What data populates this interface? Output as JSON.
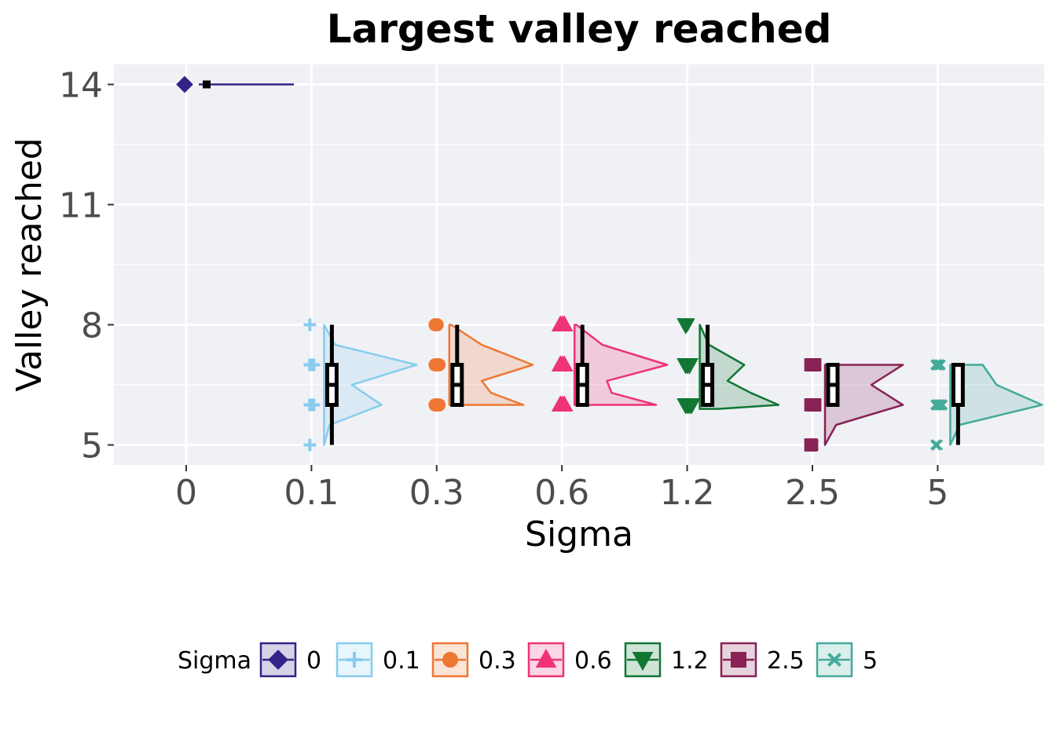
{
  "chart_data": {
    "type": "raincloud",
    "title": "Largest valley reached",
    "xlabel": "Sigma",
    "ylabel": "Valley reached",
    "categories": [
      "0",
      "0.1",
      "0.3",
      "0.6",
      "1.2",
      "2.5",
      "5"
    ],
    "y_ticks": [
      5,
      8,
      11,
      14
    ],
    "y_tick_labels": [
      "5",
      "8",
      "11",
      "14"
    ],
    "ylim": [
      4.5,
      14.5
    ],
    "grid": true,
    "legend_position": "bottom",
    "legend_title": "Sigma",
    "colors": [
      "#332288",
      "#88CCEE",
      "#EE7733",
      "#EE3377",
      "#117733",
      "#882255",
      "#44AA99"
    ],
    "markers": [
      "diamond",
      "plus",
      "circle",
      "triangle-up",
      "triangle-down",
      "square",
      "x"
    ],
    "series": [
      {
        "name": "0",
        "points": [
          14
        ],
        "box": {
          "min": 14,
          "q1": 14,
          "median": 14,
          "q3": 14,
          "max": 14
        },
        "density": [
          [
            14,
            1.0
          ]
        ],
        "outliers": []
      },
      {
        "name": "0.1",
        "points": [
          5,
          6,
          6,
          6,
          7,
          7,
          7,
          8
        ],
        "box": {
          "min": 5,
          "q1": 6,
          "median": 6.5,
          "q3": 7,
          "max": 8
        },
        "density": [
          [
            5,
            0.0
          ],
          [
            5.5,
            0.06
          ],
          [
            6,
            0.62
          ],
          [
            6.5,
            0.3
          ],
          [
            7,
            1.0
          ],
          [
            7.5,
            0.12
          ],
          [
            8,
            0.0
          ]
        ],
        "outliers": []
      },
      {
        "name": "0.3",
        "points": [
          6,
          6,
          6,
          7,
          7,
          7,
          8,
          8
        ],
        "box": {
          "min": 6,
          "q1": 6,
          "median": 6.5,
          "q3": 7,
          "max": 8
        },
        "density": [
          [
            6,
            0.8
          ],
          [
            6.3,
            0.45
          ],
          [
            6.6,
            0.35
          ],
          [
            7,
            0.9
          ],
          [
            7.5,
            0.35
          ],
          [
            8,
            0.02
          ]
        ],
        "outliers": []
      },
      {
        "name": "0.6",
        "points": [
          6,
          6,
          6,
          7,
          7,
          7,
          8,
          8,
          8
        ],
        "box": {
          "min": 6,
          "q1": 6,
          "median": 6.5,
          "q3": 7,
          "max": 8
        },
        "density": [
          [
            6,
            0.88
          ],
          [
            6.3,
            0.4
          ],
          [
            6.6,
            0.35
          ],
          [
            7,
            1.0
          ],
          [
            7.5,
            0.3
          ],
          [
            8,
            0.02
          ]
        ],
        "outliers": []
      },
      {
        "name": "1.2",
        "points": [
          6,
          6,
          6,
          6,
          7,
          7,
          7,
          8
        ],
        "box": {
          "min": 6,
          "q1": 6,
          "median": 6.5,
          "q3": 7,
          "max": 8
        },
        "density": [
          [
            5.9,
            0.2
          ],
          [
            6,
            0.85
          ],
          [
            6.3,
            0.55
          ],
          [
            6.6,
            0.3
          ],
          [
            7,
            0.48
          ],
          [
            7.5,
            0.1
          ],
          [
            8,
            0.0
          ]
        ],
        "outliers": [
          8
        ]
      },
      {
        "name": "2.5",
        "points": [
          6,
          6,
          6,
          7,
          7,
          7,
          5
        ],
        "box": {
          "min": 6,
          "q1": 6,
          "median": 6.5,
          "q3": 7,
          "max": 7
        },
        "density": [
          [
            5,
            0.0
          ],
          [
            5.5,
            0.12
          ],
          [
            6,
            0.84
          ],
          [
            6.5,
            0.5
          ],
          [
            7,
            0.84
          ]
        ],
        "outliers": [
          5
        ]
      },
      {
        "name": "5",
        "points": [
          6,
          6,
          6,
          6,
          7,
          7,
          7,
          5
        ],
        "box": {
          "min": 5,
          "q1": 6,
          "median": 6,
          "q3": 7,
          "max": 7
        },
        "density": [
          [
            5,
            0.0
          ],
          [
            5.5,
            0.1
          ],
          [
            6,
            0.99
          ],
          [
            6.5,
            0.5
          ],
          [
            7,
            0.35
          ]
        ],
        "outliers": [
          5
        ]
      }
    ]
  }
}
